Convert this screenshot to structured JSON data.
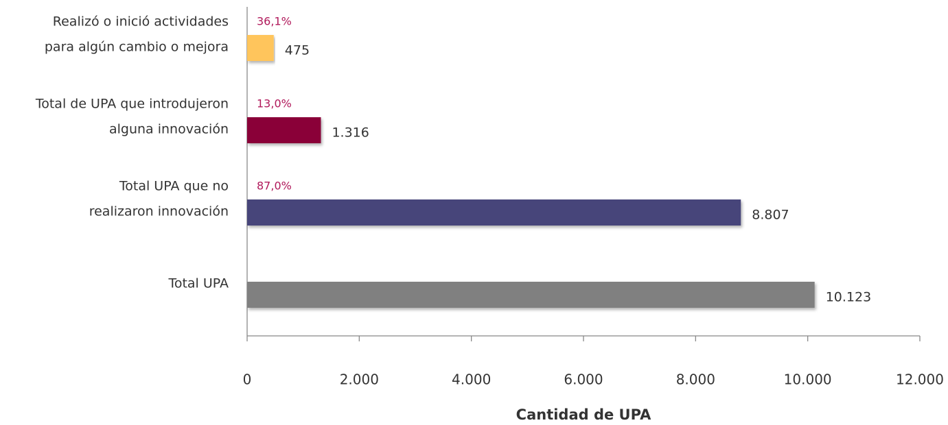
{
  "chart_data": {
    "type": "barh",
    "categories": [
      [
        "Realizó o inició actividades",
        "para algún cambio o mejora"
      ],
      [
        "Total de UPA que introdujeron",
        "alguna innovación"
      ],
      [
        "Total UPA que no",
        "realizaron innovación"
      ],
      [
        "Total UPA"
      ]
    ],
    "values": [
      475,
      1316,
      8807,
      10123
    ],
    "value_labels": [
      "475",
      "1.316",
      "8.807",
      "10.123"
    ],
    "annotations": [
      "36,1%",
      "13,0%",
      "87,0%",
      null
    ],
    "colors": [
      "#ffc55c",
      "#8a0039",
      "#46457a",
      "#808080"
    ],
    "annotation_color": "#b0185a",
    "xlim": [
      0,
      12000
    ],
    "xticks": [
      0,
      {
        "value": 2000,
        "label": "2.000"
      },
      {
        "value": 4000,
        "label": "4.000"
      },
      {
        "value": 6000,
        "label": "6.000"
      },
      {
        "value": 8000,
        "label": "8.000"
      },
      {
        "value": 10000,
        "label": "10.000"
      },
      {
        "value": 12000,
        "label": "12.000"
      }
    ],
    "xlabel": "Cantidad de UPA"
  }
}
